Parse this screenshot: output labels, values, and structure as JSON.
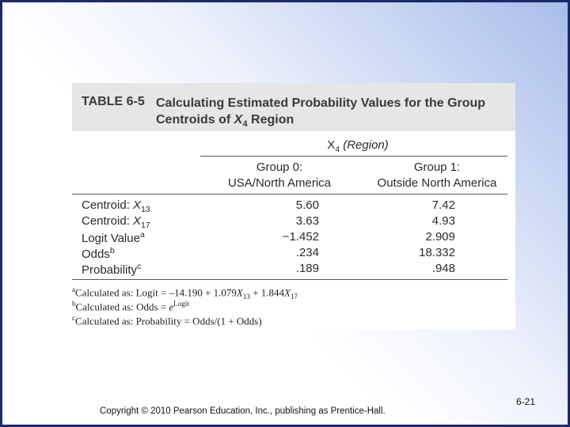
{
  "table": {
    "label": "TABLE 6-5",
    "title_line1": "Calculating Estimated Probability Values for the Group",
    "title_line2_pre": "Centroids of ",
    "title_line2_var": "X",
    "title_line2_sub": "4",
    "title_line2_post": " Region",
    "spanner_var": "X",
    "spanner_sub": "4",
    "spanner_post": " (Region)",
    "col0_line1": "Group 0:",
    "col0_line2": "USA/North America",
    "col1_line1": "Group 1:",
    "col1_line2": "Outside North America",
    "rows": [
      {
        "label_pre": "Centroid: ",
        "label_var": "X",
        "label_sub": "13",
        "label_sup": "",
        "v0": "5.60",
        "v1": "7.42"
      },
      {
        "label_pre": "Centroid: ",
        "label_var": "X",
        "label_sub": "17",
        "label_sup": "",
        "v0": "3.63",
        "v1": "4.93"
      },
      {
        "label_pre": "Logit Value",
        "label_var": "",
        "label_sub": "",
        "label_sup": "a",
        "v0": "−1.452",
        "v1": "2.909"
      },
      {
        "label_pre": "Odds",
        "label_var": "",
        "label_sub": "",
        "label_sup": "b",
        "v0": ".234",
        "v1": "18.332"
      },
      {
        "label_pre": "Probability",
        "label_var": "",
        "label_sub": "",
        "label_sup": "c",
        "v0": ".189",
        "v1": ".948"
      }
    ],
    "footnotes": {
      "a_mark": "a",
      "a_text": "Calculated as: Logit = –14.190 + 1.079",
      "a_var1": "X",
      "a_sub1": "13",
      "a_text2": " + 1.844",
      "a_var2": "X",
      "a_sub2": "17",
      "b_mark": "b",
      "b_text": "Calculated as: Odds = ",
      "b_e": "e",
      "b_sup": "Logit",
      "c_mark": "c",
      "c_text": "Calculated as: Probability = Odds/(1 + Odds)"
    }
  },
  "footer": {
    "copyright": "Copyright © 2010 Pearson Education, Inc., publishing as Prentice-Hall.",
    "page": "6-21"
  },
  "colors": {
    "border": "#1a2a6e",
    "title_band": "#e6e6e6",
    "gradient_corner": "#a7bde9"
  }
}
